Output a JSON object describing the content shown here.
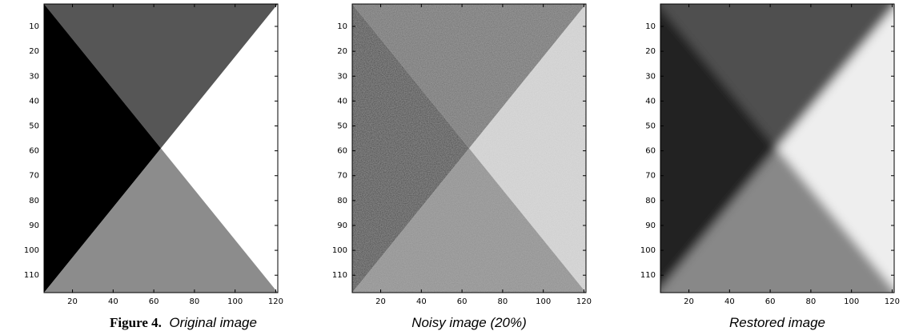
{
  "chart_data": [
    {
      "type": "image",
      "figure_label": "Figure 4.",
      "caption": "Original image",
      "colors": {
        "top": "#565656",
        "left": "#000000",
        "right": "#ffffff",
        "bottom": "#8c8c8c"
      },
      "xlim": [
        6,
        121
      ],
      "ylim": [
        1,
        117
      ],
      "xticks": [
        20,
        40,
        60,
        80,
        100,
        120
      ],
      "yticks": [
        10,
        20,
        30,
        40,
        50,
        60,
        70,
        80,
        90,
        100,
        110
      ]
    },
    {
      "type": "image",
      "caption": "Noisy image (20%)",
      "colors": {
        "top": "#6e6e6e",
        "left": "#3a3a3a",
        "right": "#dcdcdc",
        "bottom": "#8e8e8e"
      },
      "xlim": [
        6,
        121
      ],
      "ylim": [
        1,
        117
      ],
      "xticks": [
        20,
        40,
        60,
        80,
        100,
        120
      ],
      "yticks": [
        10,
        20,
        30,
        40,
        50,
        60,
        70,
        80,
        90,
        100,
        110
      ]
    },
    {
      "type": "image",
      "caption": "Restored image",
      "colors": {
        "top": "#505050",
        "left": "#222222",
        "right": "#eeeeee",
        "bottom": "#888888"
      },
      "xlim": [
        6,
        121
      ],
      "ylim": [
        1,
        117
      ],
      "xticks": [
        20,
        40,
        60,
        80,
        100,
        120
      ],
      "yticks": [
        10,
        20,
        30,
        40,
        50,
        60,
        70,
        80,
        90,
        100,
        110
      ]
    }
  ]
}
